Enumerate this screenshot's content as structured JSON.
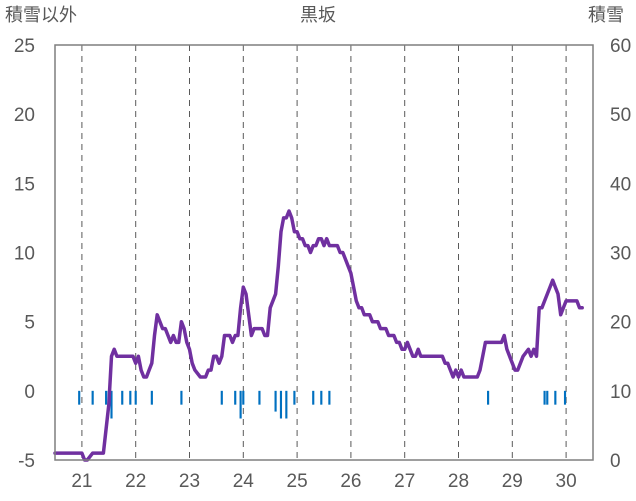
{
  "chart_data": {
    "type": "line",
    "title": "黒坂",
    "ylabel_left": "積雪以外",
    "ylabel_right": "積雪",
    "x_range": [
      20.5,
      30.5
    ],
    "x_ticks": [
      21,
      22,
      23,
      24,
      25,
      26,
      27,
      28,
      29,
      30
    ],
    "x_tick_labels": [
      "21",
      "22",
      "23",
      "24",
      "25",
      "26",
      "27",
      "28",
      "29",
      "30"
    ],
    "y_left_range": [
      -5,
      25
    ],
    "y_left_ticks": [
      "-5",
      "0",
      "5",
      "10",
      "15",
      "20",
      "25"
    ],
    "y_right_range": [
      0,
      60
    ],
    "y_right_ticks": [
      "0",
      "10",
      "20",
      "30",
      "40",
      "50",
      "60"
    ],
    "grid": "vertical dashed",
    "colors": {
      "line": "#7030a0",
      "bars": "#0070c0",
      "axis": "#7f7f7f",
      "grid": "#595959"
    },
    "series": [
      {
        "axis": "left",
        "kind": "line",
        "points": [
          [
            20.5,
            -4.5
          ],
          [
            20.75,
            -4.5
          ],
          [
            21.0,
            -4.5
          ],
          [
            21.05,
            -5.0
          ],
          [
            21.1,
            -5.0
          ],
          [
            21.2,
            -4.5
          ],
          [
            21.4,
            -4.5
          ],
          [
            21.5,
            -1.0
          ],
          [
            21.55,
            2.5
          ],
          [
            21.6,
            3.0
          ],
          [
            21.65,
            2.5
          ],
          [
            21.8,
            2.5
          ],
          [
            21.95,
            2.5
          ],
          [
            22.0,
            2.0
          ],
          [
            22.05,
            2.5
          ],
          [
            22.1,
            1.5
          ],
          [
            22.15,
            1.0
          ],
          [
            22.2,
            1.0
          ],
          [
            22.25,
            1.5
          ],
          [
            22.3,
            2.0
          ],
          [
            22.35,
            4.0
          ],
          [
            22.4,
            5.5
          ],
          [
            22.45,
            5.0
          ],
          [
            22.5,
            4.5
          ],
          [
            22.55,
            4.5
          ],
          [
            22.6,
            4.0
          ],
          [
            22.65,
            3.5
          ],
          [
            22.7,
            4.0
          ],
          [
            22.75,
            3.5
          ],
          [
            22.8,
            3.5
          ],
          [
            22.85,
            5.0
          ],
          [
            22.9,
            4.5
          ],
          [
            22.95,
            3.5
          ],
          [
            23.0,
            3.0
          ],
          [
            23.05,
            2.0
          ],
          [
            23.1,
            1.5
          ],
          [
            23.2,
            1.0
          ],
          [
            23.3,
            1.0
          ],
          [
            23.35,
            1.5
          ],
          [
            23.4,
            1.5
          ],
          [
            23.45,
            2.5
          ],
          [
            23.5,
            2.5
          ],
          [
            23.55,
            2.0
          ],
          [
            23.6,
            2.5
          ],
          [
            23.65,
            4.0
          ],
          [
            23.75,
            4.0
          ],
          [
            23.8,
            3.5
          ],
          [
            23.85,
            4.0
          ],
          [
            23.9,
            4.0
          ],
          [
            23.95,
            6.0
          ],
          [
            24.0,
            7.5
          ],
          [
            24.05,
            7.0
          ],
          [
            24.1,
            5.5
          ],
          [
            24.15,
            4.0
          ],
          [
            24.2,
            4.5
          ],
          [
            24.3,
            4.5
          ],
          [
            24.35,
            4.5
          ],
          [
            24.4,
            4.0
          ],
          [
            24.45,
            4.0
          ],
          [
            24.5,
            6.0
          ],
          [
            24.6,
            7.0
          ],
          [
            24.65,
            9.0
          ],
          [
            24.7,
            11.5
          ],
          [
            24.75,
            12.5
          ],
          [
            24.8,
            12.5
          ],
          [
            24.85,
            13.0
          ],
          [
            24.9,
            12.5
          ],
          [
            24.95,
            11.5
          ],
          [
            25.0,
            11.5
          ],
          [
            25.05,
            11.0
          ],
          [
            25.1,
            11.0
          ],
          [
            25.15,
            10.5
          ],
          [
            25.2,
            10.5
          ],
          [
            25.25,
            10.0
          ],
          [
            25.3,
            10.5
          ],
          [
            25.35,
            10.5
          ],
          [
            25.4,
            11.0
          ],
          [
            25.45,
            11.0
          ],
          [
            25.5,
            10.5
          ],
          [
            25.55,
            11.0
          ],
          [
            25.6,
            10.5
          ],
          [
            25.7,
            10.5
          ],
          [
            25.75,
            10.5
          ],
          [
            25.8,
            10.0
          ],
          [
            25.85,
            10.0
          ],
          [
            25.9,
            9.5
          ],
          [
            25.95,
            9.0
          ],
          [
            26.0,
            8.5
          ],
          [
            26.05,
            7.5
          ],
          [
            26.1,
            6.5
          ],
          [
            26.15,
            6.0
          ],
          [
            26.2,
            6.0
          ],
          [
            26.25,
            5.5
          ],
          [
            26.35,
            5.5
          ],
          [
            26.4,
            5.0
          ],
          [
            26.5,
            5.0
          ],
          [
            26.55,
            4.5
          ],
          [
            26.65,
            4.5
          ],
          [
            26.7,
            4.0
          ],
          [
            26.8,
            4.0
          ],
          [
            26.85,
            3.5
          ],
          [
            26.9,
            3.5
          ],
          [
            26.95,
            3.0
          ],
          [
            27.0,
            3.0
          ],
          [
            27.05,
            3.5
          ],
          [
            27.1,
            3.0
          ],
          [
            27.15,
            2.5
          ],
          [
            27.2,
            2.5
          ],
          [
            27.25,
            3.0
          ],
          [
            27.3,
            2.5
          ],
          [
            27.35,
            2.5
          ],
          [
            27.45,
            2.5
          ],
          [
            27.55,
            2.5
          ],
          [
            27.7,
            2.5
          ],
          [
            27.75,
            2.0
          ],
          [
            27.8,
            2.0
          ],
          [
            27.85,
            1.5
          ],
          [
            27.9,
            1.0
          ],
          [
            27.95,
            1.5
          ],
          [
            28.0,
            1.0
          ],
          [
            28.05,
            1.5
          ],
          [
            28.1,
            1.0
          ],
          [
            28.15,
            1.0
          ],
          [
            28.25,
            1.0
          ],
          [
            28.35,
            1.0
          ],
          [
            28.4,
            1.5
          ],
          [
            28.45,
            2.5
          ],
          [
            28.5,
            3.5
          ],
          [
            28.6,
            3.5
          ],
          [
            28.7,
            3.5
          ],
          [
            28.8,
            3.5
          ],
          [
            28.85,
            4.0
          ],
          [
            28.9,
            3.0
          ],
          [
            28.95,
            2.5
          ],
          [
            29.0,
            2.0
          ],
          [
            29.05,
            1.5
          ],
          [
            29.1,
            1.5
          ],
          [
            29.15,
            2.0
          ],
          [
            29.2,
            2.5
          ],
          [
            29.3,
            3.0
          ],
          [
            29.35,
            2.5
          ],
          [
            29.4,
            3.0
          ],
          [
            29.45,
            2.5
          ],
          [
            29.5,
            6.0
          ],
          [
            29.55,
            6.0
          ],
          [
            29.6,
            6.5
          ],
          [
            29.65,
            7.0
          ],
          [
            29.7,
            7.5
          ],
          [
            29.75,
            8.0
          ],
          [
            29.8,
            7.5
          ],
          [
            29.85,
            7.0
          ],
          [
            29.9,
            5.5
          ],
          [
            29.95,
            6.0
          ],
          [
            30.0,
            6.5
          ],
          [
            30.1,
            6.5
          ],
          [
            30.2,
            6.5
          ],
          [
            30.25,
            6.0
          ],
          [
            30.3,
            6.0
          ]
        ]
      },
      {
        "axis": "left",
        "kind": "bar",
        "width": 0.04,
        "points": [
          [
            20.95,
            -1.0
          ],
          [
            21.2,
            -1.0
          ],
          [
            21.45,
            -1.0
          ],
          [
            21.5,
            -1.0
          ],
          [
            21.55,
            -2.0
          ],
          [
            21.75,
            -1.0
          ],
          [
            21.9,
            -1.0
          ],
          [
            22.0,
            -1.0
          ],
          [
            22.3,
            -1.0
          ],
          [
            22.85,
            -1.0
          ],
          [
            23.6,
            -1.0
          ],
          [
            23.85,
            -1.0
          ],
          [
            23.95,
            -2.0
          ],
          [
            24.0,
            -1.0
          ],
          [
            24.3,
            -1.0
          ],
          [
            24.6,
            -1.5
          ],
          [
            24.7,
            -2.0
          ],
          [
            24.8,
            -2.0
          ],
          [
            24.95,
            -1.0
          ],
          [
            25.3,
            -1.0
          ],
          [
            25.45,
            -1.0
          ],
          [
            25.6,
            -1.0
          ],
          [
            28.55,
            -1.0
          ],
          [
            29.6,
            -1.0
          ],
          [
            29.65,
            -1.0
          ],
          [
            29.8,
            -1.0
          ],
          [
            29.98,
            -1.0
          ]
        ]
      }
    ]
  }
}
